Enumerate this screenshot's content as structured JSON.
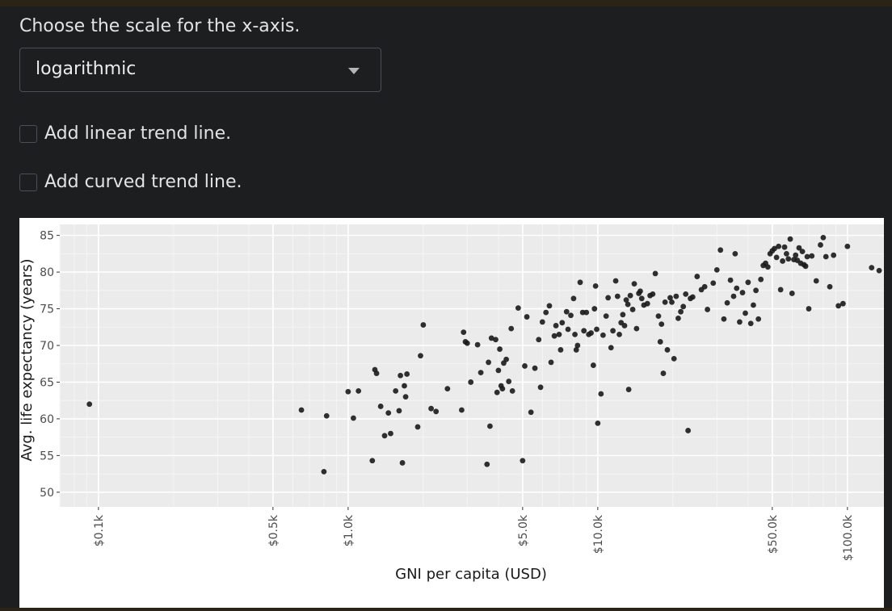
{
  "controls": {
    "scale_prompt": "Choose the scale for the x-axis.",
    "scale_selected": "logarithmic",
    "linear_trend_label": "Add linear trend line.",
    "curved_trend_label": "Add curved trend line."
  },
  "chart_data": {
    "type": "scatter",
    "title": "",
    "xlabel": "GNI per capita (USD)",
    "ylabel": "Avg. life expectancy (years)",
    "x_scale": "log",
    "xlim": [
      70,
      140000
    ],
    "ylim": [
      48,
      86.5
    ],
    "x_ticks": [
      {
        "value": 100,
        "label": "$0.1k"
      },
      {
        "value": 500,
        "label": "$0.5k"
      },
      {
        "value": 1000,
        "label": "$1.0k"
      },
      {
        "value": 5000,
        "label": "$5.0k"
      },
      {
        "value": 10000,
        "label": "$10.0k"
      },
      {
        "value": 50000,
        "label": "$50.0k"
      },
      {
        "value": 100000,
        "label": "$100.0k"
      }
    ],
    "y_ticks": [
      50,
      55,
      60,
      65,
      70,
      75,
      80,
      85
    ],
    "grid": true,
    "point_color": "#1a1a1a",
    "points": [
      [
        92,
        62.0
      ],
      [
        650,
        61.2
      ],
      [
        800,
        52.8
      ],
      [
        820,
        60.4
      ],
      [
        1000,
        63.7
      ],
      [
        1050,
        60.1
      ],
      [
        1100,
        63.8
      ],
      [
        1250,
        54.3
      ],
      [
        1280,
        66.7
      ],
      [
        1300,
        66.2
      ],
      [
        1350,
        61.7
      ],
      [
        1400,
        57.7
      ],
      [
        1450,
        60.8
      ],
      [
        1480,
        58.0
      ],
      [
        1550,
        63.8
      ],
      [
        1600,
        61.1
      ],
      [
        1620,
        65.9
      ],
      [
        1650,
        54.0
      ],
      [
        1680,
        64.5
      ],
      [
        1700,
        63.0
      ],
      [
        1720,
        66.1
      ],
      [
        1900,
        58.9
      ],
      [
        1950,
        68.6
      ],
      [
        2000,
        72.8
      ],
      [
        2150,
        61.4
      ],
      [
        2250,
        61.0
      ],
      [
        2500,
        64.1
      ],
      [
        2850,
        61.2
      ],
      [
        2900,
        71.8
      ],
      [
        2950,
        70.5
      ],
      [
        3000,
        70.3
      ],
      [
        3100,
        65.0
      ],
      [
        3300,
        70.1
      ],
      [
        3400,
        66.3
      ],
      [
        3600,
        53.8
      ],
      [
        3650,
        67.7
      ],
      [
        3700,
        59.0
      ],
      [
        3750,
        71.0
      ],
      [
        3900,
        70.8
      ],
      [
        3950,
        63.6
      ],
      [
        4000,
        66.6
      ],
      [
        4050,
        69.5
      ],
      [
        4100,
        64.5
      ],
      [
        4150,
        64.1
      ],
      [
        4200,
        67.6
      ],
      [
        4300,
        68.1
      ],
      [
        4400,
        65.1
      ],
      [
        4500,
        72.3
      ],
      [
        4550,
        63.8
      ],
      [
        4800,
        75.1
      ],
      [
        5000,
        54.3
      ],
      [
        5100,
        67.2
      ],
      [
        5200,
        73.9
      ],
      [
        5400,
        60.9
      ],
      [
        5600,
        66.9
      ],
      [
        5800,
        70.8
      ],
      [
        5900,
        64.3
      ],
      [
        6000,
        73.2
      ],
      [
        6200,
        74.5
      ],
      [
        6400,
        75.4
      ],
      [
        6500,
        67.7
      ],
      [
        6700,
        71.3
      ],
      [
        6800,
        72.7
      ],
      [
        7000,
        71.5
      ],
      [
        7100,
        69.4
      ],
      [
        7200,
        73.1
      ],
      [
        7500,
        74.6
      ],
      [
        7600,
        72.2
      ],
      [
        7800,
        74.1
      ],
      [
        8000,
        76.4
      ],
      [
        8100,
        71.5
      ],
      [
        8200,
        69.4
      ],
      [
        8300,
        70.0
      ],
      [
        8500,
        78.6
      ],
      [
        8700,
        74.5
      ],
      [
        8800,
        72.0
      ],
      [
        9000,
        74.5
      ],
      [
        9200,
        71.5
      ],
      [
        9400,
        71.7
      ],
      [
        9600,
        67.3
      ],
      [
        9700,
        75.0
      ],
      [
        9800,
        78.1
      ],
      [
        9900,
        72.2
      ],
      [
        10000,
        59.4
      ],
      [
        10300,
        63.4
      ],
      [
        10500,
        71.4
      ],
      [
        10800,
        74.0
      ],
      [
        11000,
        76.5
      ],
      [
        11300,
        69.7
      ],
      [
        11500,
        72.0
      ],
      [
        11800,
        78.8
      ],
      [
        12000,
        76.7
      ],
      [
        12200,
        71.5
      ],
      [
        12400,
        73.1
      ],
      [
        12600,
        74.2
      ],
      [
        12800,
        72.7
      ],
      [
        13000,
        76.2
      ],
      [
        13200,
        75.6
      ],
      [
        13300,
        64.0
      ],
      [
        13500,
        76.8
      ],
      [
        13800,
        74.9
      ],
      [
        14000,
        78.4
      ],
      [
        14300,
        72.3
      ],
      [
        14600,
        77.1
      ],
      [
        14800,
        77.4
      ],
      [
        15000,
        76.4
      ],
      [
        15300,
        75.5
      ],
      [
        15800,
        75.7
      ],
      [
        16200,
        76.8
      ],
      [
        16600,
        77.0
      ],
      [
        17000,
        79.8
      ],
      [
        17500,
        74.0
      ],
      [
        17800,
        70.5
      ],
      [
        18000,
        72.9
      ],
      [
        18300,
        66.2
      ],
      [
        18600,
        75.9
      ],
      [
        19000,
        69.4
      ],
      [
        19500,
        76.5
      ],
      [
        19800,
        75.9
      ],
      [
        20200,
        68.2
      ],
      [
        20600,
        76.7
      ],
      [
        21000,
        73.7
      ],
      [
        21500,
        74.6
      ],
      [
        22000,
        75.3
      ],
      [
        22500,
        77.0
      ],
      [
        23000,
        58.4
      ],
      [
        23500,
        76.4
      ],
      [
        24000,
        76.6
      ],
      [
        25000,
        79.4
      ],
      [
        26000,
        77.6
      ],
      [
        26800,
        78.0
      ],
      [
        27500,
        74.9
      ],
      [
        29000,
        78.5
      ],
      [
        30000,
        80.3
      ],
      [
        31000,
        83.0
      ],
      [
        32000,
        73.6
      ],
      [
        33000,
        75.8
      ],
      [
        34000,
        78.9
      ],
      [
        35000,
        76.7
      ],
      [
        35500,
        82.5
      ],
      [
        36000,
        77.8
      ],
      [
        37000,
        73.2
      ],
      [
        38000,
        77.2
      ],
      [
        39000,
        74.4
      ],
      [
        40000,
        78.6
      ],
      [
        41000,
        73.0
      ],
      [
        42000,
        75.5
      ],
      [
        43000,
        77.5
      ],
      [
        44000,
        73.6
      ],
      [
        45000,
        79.0
      ],
      [
        46000,
        80.9
      ],
      [
        47000,
        81.2
      ],
      [
        48000,
        80.7
      ],
      [
        49000,
        82.5
      ],
      [
        50000,
        82.9
      ],
      [
        51000,
        83.2
      ],
      [
        52000,
        82.0
      ],
      [
        53000,
        83.5
      ],
      [
        54000,
        77.6
      ],
      [
        55000,
        81.5
      ],
      [
        56000,
        83.4
      ],
      [
        57000,
        82.5
      ],
      [
        58000,
        81.8
      ],
      [
        59000,
        84.5
      ],
      [
        60000,
        77.1
      ],
      [
        61000,
        81.7
      ],
      [
        62000,
        82.3
      ],
      [
        63000,
        81.6
      ],
      [
        64000,
        83.3
      ],
      [
        65000,
        81.2
      ],
      [
        66000,
        82.8
      ],
      [
        67000,
        81.0
      ],
      [
        68000,
        80.8
      ],
      [
        69000,
        82.1
      ],
      [
        70000,
        75.0
      ],
      [
        72000,
        82.2
      ],
      [
        75000,
        78.8
      ],
      [
        78000,
        83.7
      ],
      [
        80000,
        84.7
      ],
      [
        82000,
        82.1
      ],
      [
        85000,
        78.0
      ],
      [
        88000,
        82.3
      ],
      [
        92000,
        75.4
      ],
      [
        96000,
        75.7
      ],
      [
        100000,
        83.5
      ],
      [
        125000,
        80.6
      ],
      [
        134000,
        80.2
      ]
    ]
  }
}
